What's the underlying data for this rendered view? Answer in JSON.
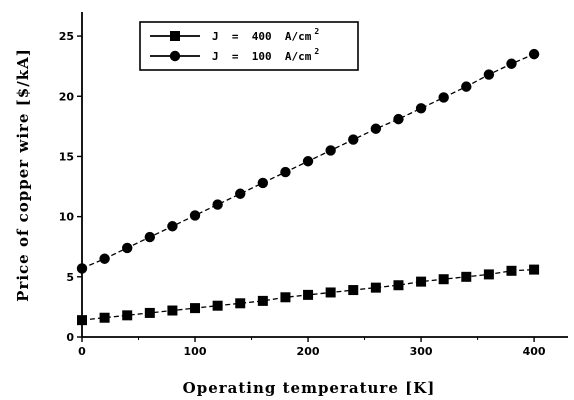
{
  "chart_data": {
    "type": "line",
    "title": "",
    "xlabel": "Operating temperature [K]",
    "ylabel": "Price of copper wire [$/kA]",
    "xlim": [
      0,
      430
    ],
    "ylim": [
      0,
      27
    ],
    "xticks": [
      0,
      100,
      200,
      300,
      400
    ],
    "yticks": [
      0,
      5,
      10,
      15,
      20,
      25
    ],
    "grid": false,
    "legend_position": "top-center",
    "series": [
      {
        "name": "J = 400 A/cm",
        "name_sup": "2",
        "marker": "square",
        "x": [
          0,
          20,
          40,
          60,
          80,
          100,
          120,
          140,
          160,
          180,
          200,
          220,
          240,
          260,
          280,
          300,
          320,
          340,
          360,
          380,
          400
        ],
        "y": [
          1.4,
          1.6,
          1.8,
          2.0,
          2.2,
          2.4,
          2.6,
          2.8,
          3.0,
          3.3,
          3.5,
          3.7,
          3.9,
          4.1,
          4.3,
          4.6,
          4.8,
          5.0,
          5.2,
          5.5,
          5.6
        ]
      },
      {
        "name": "J = 100 A/cm",
        "name_sup": "2",
        "marker": "circle",
        "x": [
          0,
          20,
          40,
          60,
          80,
          100,
          120,
          140,
          160,
          180,
          200,
          220,
          240,
          260,
          280,
          300,
          320,
          340,
          360,
          380,
          400
        ],
        "y": [
          5.7,
          6.5,
          7.4,
          8.3,
          9.2,
          10.1,
          11.0,
          11.9,
          12.8,
          13.7,
          14.6,
          15.5,
          16.4,
          17.3,
          18.1,
          19.0,
          19.9,
          20.8,
          21.8,
          22.7,
          23.5
        ]
      }
    ]
  }
}
